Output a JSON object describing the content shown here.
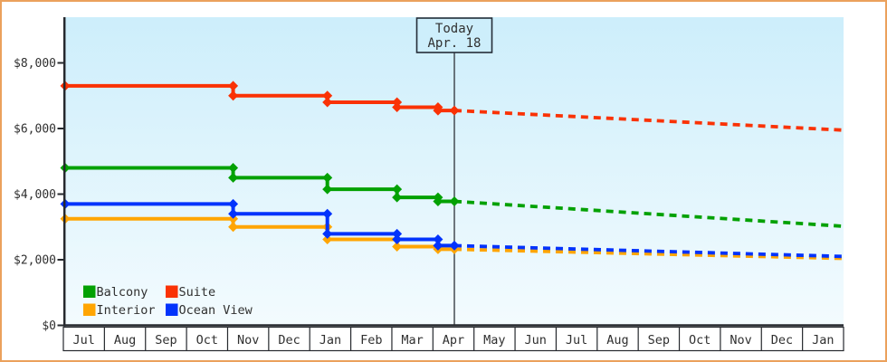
{
  "theme": {
    "frame_border_color": "#eba15c",
    "plot_gradient_top": "#cdeefb",
    "plot_gradient_bottom": "#f3fbfe",
    "axis_color": "#26292e",
    "text_color": "#303030",
    "today_line_color": "#3a3f45",
    "today_box_fill": "#cdeefb",
    "today_box_border": "#252d38",
    "month_cell_fill": "#ffffff"
  },
  "chart_data": {
    "type": "line",
    "title": "",
    "x_axis": {
      "months": [
        "Jul",
        "Aug",
        "Sep",
        "Oct",
        "Nov",
        "Dec",
        "Jan",
        "Feb",
        "Mar",
        "Apr",
        "May",
        "Jun",
        "Jul",
        "Aug",
        "Sep",
        "Oct",
        "Nov",
        "Dec",
        "Jan"
      ],
      "range_months": 19
    },
    "y_axis": {
      "ticks": [
        {
          "value": 0,
          "label": "$0"
        },
        {
          "value": 2000,
          "label": "$2,000"
        },
        {
          "value": 4000,
          "label": "$4,000"
        },
        {
          "value": 6000,
          "label": "$6,000"
        },
        {
          "value": 8000,
          "label": "$8,000"
        }
      ],
      "min": 0,
      "max": 8000
    },
    "today_marker": {
      "line1": "Today",
      "line2": "Apr. 18",
      "x_month": 9.5
    },
    "legend_position": "bottom-left-inside",
    "series": [
      {
        "name": "Balcony",
        "color": "#03a103",
        "solid_points": [
          [
            0,
            4800
          ],
          [
            4.1,
            4800
          ],
          [
            4.1,
            4500
          ],
          [
            6.4,
            4500
          ],
          [
            6.4,
            4150
          ],
          [
            8.1,
            4150
          ],
          [
            8.1,
            3900
          ],
          [
            9.1,
            3900
          ],
          [
            9.1,
            3780
          ],
          [
            9.5,
            3780
          ]
        ],
        "projected_points": [
          [
            9.5,
            3780
          ],
          [
            19,
            3020
          ]
        ]
      },
      {
        "name": "Suite",
        "color": "#fa3205",
        "solid_points": [
          [
            0,
            7300
          ],
          [
            4.1,
            7300
          ],
          [
            4.1,
            7000
          ],
          [
            6.4,
            7000
          ],
          [
            6.4,
            6800
          ],
          [
            8.1,
            6800
          ],
          [
            8.1,
            6650
          ],
          [
            9.1,
            6650
          ],
          [
            9.1,
            6550
          ],
          [
            9.5,
            6550
          ]
        ],
        "projected_points": [
          [
            9.5,
            6550
          ],
          [
            19,
            5950
          ]
        ]
      },
      {
        "name": "Interior",
        "color": "#ffa502",
        "solid_points": [
          [
            0,
            3250
          ],
          [
            4.1,
            3250
          ],
          [
            4.1,
            3000
          ],
          [
            6.4,
            3000
          ],
          [
            6.4,
            2620
          ],
          [
            8.1,
            2620
          ],
          [
            8.1,
            2400
          ],
          [
            9.1,
            2400
          ],
          [
            9.1,
            2320
          ],
          [
            9.5,
            2320
          ]
        ],
        "projected_points": [
          [
            9.5,
            2320
          ],
          [
            19,
            2040
          ]
        ]
      },
      {
        "name": "Ocean View",
        "color": "#0233fc",
        "solid_points": [
          [
            0,
            3700
          ],
          [
            4.1,
            3700
          ],
          [
            4.1,
            3400
          ],
          [
            6.4,
            3400
          ],
          [
            6.4,
            2790
          ],
          [
            8.1,
            2790
          ],
          [
            8.1,
            2620
          ],
          [
            9.1,
            2620
          ],
          [
            9.1,
            2430
          ],
          [
            9.5,
            2430
          ]
        ],
        "projected_points": [
          [
            9.5,
            2430
          ],
          [
            19,
            2100
          ]
        ]
      }
    ]
  }
}
